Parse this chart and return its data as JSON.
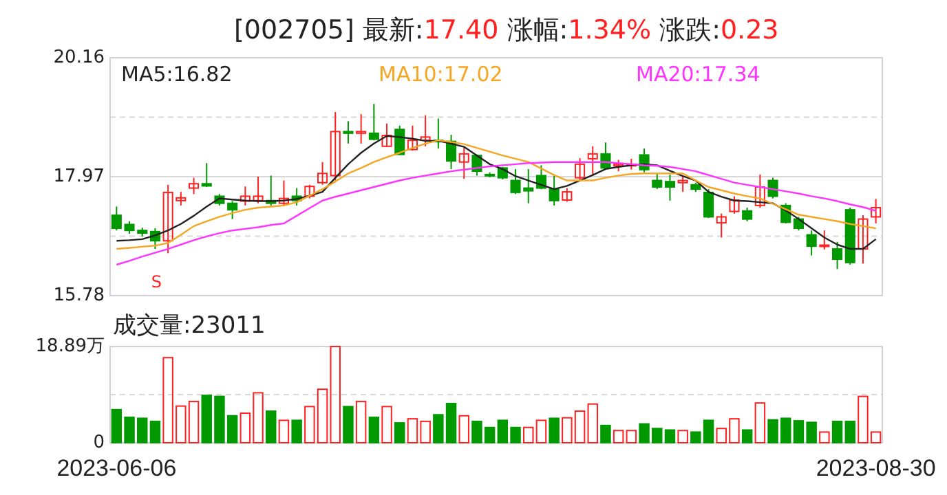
{
  "chart_data": [
    {
      "type": "candlestick",
      "title": "[002705]",
      "annotations": [
        "最新:17.40",
        "涨幅:1.34%",
        "涨跌:0.23",
        "S"
      ],
      "categories": [
        null,
        null,
        null,
        null,
        null,
        null,
        null,
        null,
        null,
        null,
        null,
        null,
        null,
        null,
        null,
        null,
        null,
        null,
        null,
        null,
        null,
        null,
        null,
        null,
        null,
        null,
        null,
        null,
        null,
        null,
        null,
        null,
        null,
        null,
        null,
        null,
        null,
        null,
        null,
        null,
        null,
        null,
        null,
        null,
        null,
        null,
        null,
        null,
        null,
        null,
        null,
        null,
        null,
        null,
        null,
        null,
        null,
        null,
        null,
        null
      ],
      "ref_lines": [
        {
          "axis": "y",
          "value": 17.97,
          "color": "#d8d8d8"
        }
      ],
      "ohlc": [
        [
          17.26,
          17.42,
          16.98,
          17.02
        ],
        [
          17.09,
          17.15,
          16.92,
          16.98
        ],
        [
          16.98,
          17.03,
          16.87,
          16.93
        ],
        [
          16.96,
          17.02,
          16.64,
          16.79
        ],
        [
          16.79,
          17.82,
          16.56,
          17.68
        ],
        [
          17.53,
          17.69,
          17.44,
          17.58
        ],
        [
          17.76,
          17.95,
          17.65,
          17.84
        ],
        [
          17.84,
          18.22,
          17.78,
          17.8
        ],
        [
          17.61,
          17.65,
          17.44,
          17.48
        ],
        [
          17.48,
          17.52,
          17.19,
          17.36
        ],
        [
          17.52,
          17.79,
          17.44,
          17.61
        ],
        [
          17.53,
          17.97,
          17.48,
          17.61
        ],
        [
          17.53,
          17.99,
          17.44,
          17.48
        ],
        [
          17.48,
          17.9,
          17.44,
          17.57
        ],
        [
          17.61,
          17.76,
          17.44,
          17.53
        ],
        [
          17.61,
          17.82,
          17.57,
          17.79
        ],
        [
          17.86,
          18.24,
          17.82,
          18.03
        ],
        [
          17.99,
          19.16,
          17.9,
          18.8
        ],
        [
          18.8,
          18.99,
          18.58,
          18.77
        ],
        [
          18.77,
          19.12,
          18.58,
          18.8
        ],
        [
          18.77,
          19.31,
          18.64,
          18.66
        ],
        [
          18.53,
          18.95,
          18.52,
          18.73
        ],
        [
          18.84,
          18.91,
          18.37,
          18.38
        ],
        [
          18.47,
          18.91,
          18.45,
          18.64
        ],
        [
          18.64,
          19.1,
          18.53,
          18.7
        ],
        [
          18.64,
          19.04,
          18.49,
          18.62
        ],
        [
          18.62,
          18.74,
          18.11,
          18.26
        ],
        [
          18.24,
          18.51,
          17.93,
          18.39
        ],
        [
          18.36,
          18.38,
          17.99,
          18.07
        ],
        [
          18.01,
          18.05,
          17.96,
          17.99
        ],
        [
          18.13,
          18.15,
          17.92,
          17.95
        ],
        [
          17.9,
          18.11,
          17.65,
          17.68
        ],
        [
          17.76,
          18.11,
          17.48,
          17.71
        ],
        [
          17.99,
          18.18,
          17.74,
          17.76
        ],
        [
          17.74,
          17.99,
          17.44,
          17.53
        ],
        [
          17.54,
          17.76,
          17.51,
          17.69
        ],
        [
          17.95,
          18.31,
          17.9,
          18.2
        ],
        [
          18.3,
          18.53,
          17.99,
          18.39
        ],
        [
          18.39,
          18.6,
          18.11,
          18.13
        ],
        [
          18.17,
          18.28,
          18.07,
          18.2
        ],
        [
          18.17,
          18.3,
          18.1,
          18.2
        ],
        [
          18.37,
          18.49,
          18.05,
          18.1
        ],
        [
          17.9,
          18.03,
          17.74,
          17.78
        ],
        [
          17.88,
          18.01,
          17.53,
          17.78
        ],
        [
          17.86,
          17.99,
          17.69,
          17.9
        ],
        [
          17.82,
          17.86,
          17.69,
          17.74
        ],
        [
          17.68,
          17.74,
          17.21,
          17.23
        ],
        [
          17.12,
          17.29,
          16.85,
          17.23
        ],
        [
          17.33,
          17.61,
          17.29,
          17.54
        ],
        [
          17.34,
          17.4,
          17.15,
          17.19
        ],
        [
          17.44,
          18.01,
          17.4,
          17.78
        ],
        [
          17.9,
          17.95,
          17.57,
          17.61
        ],
        [
          17.44,
          17.48,
          17.11,
          17.13
        ],
        [
          17.19,
          17.23,
          16.98,
          17.02
        ],
        [
          16.9,
          16.98,
          16.52,
          16.69
        ],
        [
          16.69,
          16.98,
          16.63,
          16.71
        ],
        [
          16.64,
          16.77,
          16.27,
          16.45
        ],
        [
          17.36,
          17.4,
          16.35,
          16.39
        ],
        [
          16.64,
          17.26,
          16.37,
          17.19
        ],
        [
          17.23,
          17.56,
          17.11,
          17.4
        ]
      ],
      "colors": [
        "#009900",
        "#009900",
        "#009900",
        "#009900",
        "#ff2020",
        "#ff2020",
        "#ff2020",
        "#009900",
        "#009900",
        "#009900",
        "#ff2020",
        "#ff2020",
        "#009900",
        "#ff2020",
        "#009900",
        "#ff2020",
        "#ff2020",
        "#ff2020",
        "#009900",
        "#ff2020",
        "#009900",
        "#ff2020",
        "#009900",
        "#ff2020",
        "#ff2020",
        "#009900",
        "#009900",
        "#ff2020",
        "#009900",
        "#009900",
        "#009900",
        "#009900",
        "#009900",
        "#009900",
        "#009900",
        "#ff2020",
        "#ff2020",
        "#ff2020",
        "#009900",
        "#ff2020",
        "#ff2020",
        "#009900",
        "#009900",
        "#009900",
        "#ff2020",
        "#009900",
        "#009900",
        "#ff2020",
        "#ff2020",
        "#009900",
        "#ff2020",
        "#009900",
        "#009900",
        "#009900",
        "#009900",
        "#ff2020",
        "#009900",
        "#009900",
        "#ff2020",
        "#ff2020"
      ],
      "series": [
        {
          "name": "MA5:16.82",
          "type": "line",
          "color": "#222222",
          "values": [
            16.79,
            16.8,
            16.82,
            16.89,
            16.98,
            17.1,
            17.25,
            17.42,
            17.57,
            17.55,
            17.53,
            17.52,
            17.52,
            17.53,
            17.56,
            17.62,
            17.69,
            17.95,
            18.2,
            18.41,
            18.58,
            18.72,
            18.7,
            18.67,
            18.63,
            18.63,
            18.58,
            18.52,
            18.36,
            18.2,
            18.11,
            17.98,
            17.9,
            17.82,
            17.74,
            17.8,
            17.9,
            18.0,
            18.11,
            18.15,
            18.18,
            18.2,
            18.18,
            18.08,
            17.98,
            17.9,
            17.69,
            17.6,
            17.53,
            17.52,
            17.5,
            17.48,
            17.35,
            17.19,
            17.02,
            16.85,
            16.72,
            16.64,
            16.64,
            16.82
          ]
        },
        {
          "name": "MA10:17.02",
          "type": "line",
          "color": "#f5a623",
          "values": [
            16.64,
            16.66,
            16.68,
            16.7,
            16.75,
            16.9,
            17.06,
            17.15,
            17.23,
            17.3,
            17.36,
            17.4,
            17.42,
            17.44,
            17.5,
            17.62,
            17.74,
            17.88,
            18.03,
            18.13,
            18.24,
            18.33,
            18.41,
            18.5,
            18.58,
            18.64,
            18.61,
            18.57,
            18.5,
            18.43,
            18.36,
            18.3,
            18.24,
            18.12,
            18.0,
            17.9,
            17.9,
            17.9,
            17.95,
            17.99,
            18.02,
            18.03,
            18.03,
            18.03,
            18.03,
            17.9,
            17.78,
            17.72,
            17.66,
            17.61,
            17.57,
            17.47,
            17.37,
            17.27,
            17.23,
            17.19,
            17.15,
            17.1,
            17.06,
            17.02
          ]
        },
        {
          "name": "MA20:17.34",
          "type": "line",
          "color": "#ff33ff",
          "values": [
            16.35,
            16.42,
            16.5,
            16.57,
            16.64,
            16.72,
            16.8,
            16.87,
            16.93,
            16.98,
            17.01,
            17.04,
            17.08,
            17.11,
            17.25,
            17.39,
            17.53,
            17.6,
            17.66,
            17.72,
            17.78,
            17.84,
            17.9,
            17.95,
            17.99,
            18.03,
            18.07,
            18.1,
            18.13,
            18.16,
            18.18,
            18.2,
            18.22,
            18.23,
            18.24,
            18.24,
            18.24,
            18.24,
            18.24,
            18.22,
            18.2,
            18.18,
            18.17,
            18.15,
            18.11,
            18.07,
            18.0,
            17.93,
            17.86,
            17.82,
            17.78,
            17.74,
            17.7,
            17.66,
            17.61,
            17.57,
            17.52,
            17.46,
            17.41,
            17.34
          ]
        }
      ],
      "ylim": [
        15.78,
        20.16
      ],
      "yticks": [
        15.78,
        {
          "value": 16.875,
          "label": null
        },
        17.97,
        {
          "value": 19.065,
          "label": null
        },
        20.16
      ],
      "grid": "y",
      "legend": "top",
      "tick_labels": "y"
    },
    {
      "type": "bar",
      "title": "成交量:23011",
      "categories": [
        "2023-06-06",
        null,
        null,
        null,
        null,
        null,
        null,
        null,
        null,
        null,
        null,
        null,
        null,
        null,
        null,
        null,
        null,
        null,
        null,
        null,
        null,
        null,
        null,
        null,
        null,
        null,
        null,
        null,
        null,
        null,
        null,
        null,
        null,
        null,
        null,
        null,
        null,
        null,
        null,
        null,
        null,
        null,
        null,
        null,
        null,
        null,
        null,
        null,
        null,
        null,
        null,
        null,
        null,
        null,
        null,
        null,
        null,
        null,
        null,
        "2023-08-30"
      ],
      "values": [
        6.5,
        5.0,
        4.8,
        4.2,
        16.7,
        7.2,
        8.1,
        9.3,
        9.1,
        5.3,
        5.8,
        9.8,
        6.2,
        4.4,
        4.4,
        7.1,
        10.5,
        18.89,
        7.1,
        8.1,
        5.0,
        7.1,
        3.9,
        4.7,
        4.2,
        5.5,
        7.7,
        5.3,
        4.2,
        3.0,
        4.4,
        3.0,
        3.0,
        4.4,
        4.8,
        4.9,
        6.2,
        7.6,
        3.4,
        2.4,
        2.4,
        3.7,
        2.8,
        2.5,
        2.4,
        2.1,
        4.4,
        2.8,
        4.7,
        2.5,
        7.8,
        4.5,
        4.8,
        4.3,
        4.0,
        2.1,
        4.2,
        4.2,
        9.1,
        2.1
      ],
      "colors": [
        "#009900",
        "#009900",
        "#009900",
        "#009900",
        "#ff2020",
        "#ff2020",
        "#ff2020",
        "#009900",
        "#009900",
        "#009900",
        "#ff2020",
        "#ff2020",
        "#009900",
        "#ff2020",
        "#009900",
        "#ff2020",
        "#ff2020",
        "#ff2020",
        "#009900",
        "#ff2020",
        "#009900",
        "#ff2020",
        "#009900",
        "#ff2020",
        "#ff2020",
        "#009900",
        "#009900",
        "#ff2020",
        "#009900",
        "#009900",
        "#009900",
        "#009900",
        "#ff2020",
        "#ff2020",
        "#009900",
        "#ff2020",
        "#ff2020",
        "#ff2020",
        "#009900",
        "#ff2020",
        "#ff2020",
        "#009900",
        "#009900",
        "#009900",
        "#ff2020",
        "#009900",
        "#009900",
        "#ff2020",
        "#ff2020",
        "#009900",
        "#ff2020",
        "#009900",
        "#009900",
        "#009900",
        "#009900",
        "#ff2020",
        "#009900",
        "#009900",
        "#ff2020",
        "#ff2020"
      ],
      "ylim": [
        0,
        18.89
      ],
      "yticks": [
        0,
        {
          "value": 9.445,
          "label": null
        },
        {
          "value": 18.89,
          "label": "18.89万"
        }
      ],
      "grid": "y"
    }
  ]
}
